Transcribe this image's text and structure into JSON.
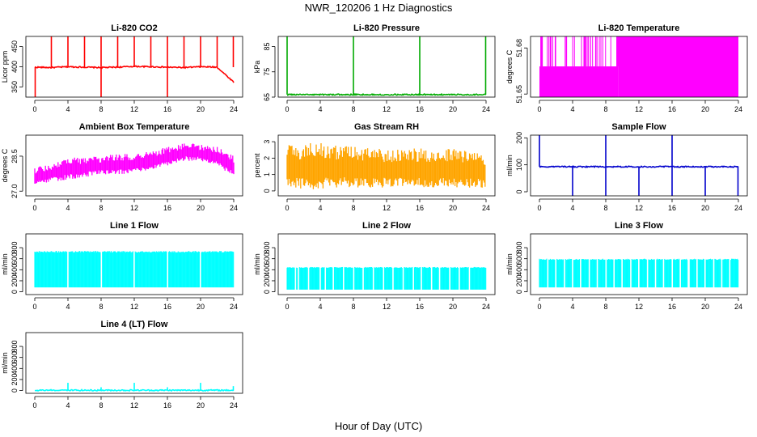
{
  "figure": {
    "title": "NWR_120206  1 Hz Diagnostics",
    "xlabel": "Hour of Day (UTC)"
  },
  "chart_data": [
    {
      "type": "line",
      "title": "Li-820 CO2",
      "ylabel": "Licor ppm",
      "color": "#ff0000",
      "xlim": [
        0,
        24
      ],
      "ylim": [
        325,
        475
      ],
      "xticks": [
        "0",
        "4",
        "8",
        "12",
        "16",
        "20",
        "24"
      ],
      "yticks": [
        "350",
        "400",
        "450"
      ],
      "x": [
        0,
        2,
        4,
        6,
        8,
        10,
        12,
        14,
        16,
        18,
        20,
        22,
        24
      ],
      "values": [
        399,
        398,
        400,
        399,
        398,
        399,
        401,
        400,
        399,
        398,
        400,
        399,
        362
      ],
      "spikes_up": [
        2,
        4,
        6,
        8,
        10,
        12,
        14,
        16,
        18,
        20,
        22,
        24
      ],
      "spikes_down": [
        0,
        8,
        16
      ]
    },
    {
      "type": "line",
      "title": "Li-820 Pressure",
      "ylabel": "kPa",
      "color": "#00aa00",
      "xlim": [
        0,
        24
      ],
      "ylim": [
        65,
        89
      ],
      "xticks": [
        "0",
        "4",
        "8",
        "12",
        "16",
        "20",
        "24"
      ],
      "yticks": [
        "65",
        "75",
        "85"
      ],
      "x": [
        0,
        4,
        8,
        12,
        16,
        20,
        24
      ],
      "values": [
        66,
        66,
        66,
        66,
        66,
        66,
        66
      ],
      "spikes_up": [
        0,
        8,
        16,
        24
      ]
    },
    {
      "type": "area",
      "title": "Li-820 Temperature",
      "ylabel": "degrees C",
      "color": "#ff00ff",
      "xlim": [
        0,
        24
      ],
      "ylim": [
        51.648,
        51.6875
      ],
      "xticks": [
        "0",
        "4",
        "8",
        "12",
        "16",
        "20",
        "24"
      ],
      "yticks": [
        "51.65",
        "51.68"
      ],
      "band_low": 51.648,
      "band_high_early": 51.668,
      "band_high_late": 51.6875,
      "transition_x": 9.5
    },
    {
      "type": "area",
      "title": "Ambient Box Temperature",
      "ylabel": "degrees C",
      "color": "#ff00ff",
      "xlim": [
        0,
        24
      ],
      "ylim": [
        26.8,
        29.4
      ],
      "xticks": [
        "0",
        "4",
        "8",
        "12",
        "16",
        "20",
        "24"
      ],
      "yticks": [
        "27.0",
        "28.5"
      ],
      "x": [
        0,
        2,
        4,
        6,
        8,
        10,
        12,
        14,
        16,
        18,
        20,
        22,
        24
      ],
      "low": [
        27.2,
        27.4,
        27.5,
        27.6,
        27.7,
        27.7,
        27.8,
        27.9,
        28.1,
        28.3,
        28.3,
        28.1,
        27.6
      ],
      "high": [
        28.0,
        28.2,
        28.4,
        28.5,
        28.5,
        28.6,
        28.6,
        28.7,
        28.9,
        29.1,
        29.0,
        28.9,
        28.5
      ]
    },
    {
      "type": "area",
      "title": "Gas Stream RH",
      "ylabel": "percent",
      "color": "#ffa500",
      "xlim": [
        0,
        24
      ],
      "ylim": [
        -0.3,
        3.4
      ],
      "xticks": [
        "0",
        "4",
        "8",
        "12",
        "16",
        "20",
        "24"
      ],
      "yticks": [
        "0",
        "1",
        "2",
        "3"
      ],
      "x": [
        0,
        2,
        4,
        6,
        8,
        10,
        12,
        14,
        16,
        18,
        20,
        22,
        24
      ],
      "low": [
        0.1,
        0.1,
        0.1,
        0.2,
        0.2,
        0.2,
        0.2,
        0.2,
        0.2,
        0.2,
        0.2,
        0.2,
        0.2
      ],
      "high": [
        2.8,
        2.9,
        3.0,
        2.8,
        2.7,
        2.6,
        2.6,
        2.6,
        2.6,
        2.5,
        2.6,
        2.5,
        2.3
      ]
    },
    {
      "type": "line",
      "title": "Sample Flow",
      "ylabel": "ml/min",
      "color": "#0000cc",
      "xlim": [
        0,
        24
      ],
      "ylim": [
        -15,
        210
      ],
      "xticks": [
        "0",
        "4",
        "8",
        "12",
        "16",
        "20",
        "24"
      ],
      "yticks": [
        "0",
        "100",
        "200"
      ],
      "x": [
        0,
        4,
        8,
        12,
        16,
        20,
        24
      ],
      "values": [
        93,
        93,
        93,
        93,
        93,
        93,
        93
      ],
      "spikes_up": [
        0,
        8,
        16
      ],
      "spikes_down": [
        4,
        8,
        12,
        16,
        20,
        24
      ]
    },
    {
      "type": "area",
      "title": "Line 1 Flow",
      "ylabel": "ml/min",
      "color": "#00ffff",
      "xlim": [
        0,
        24
      ],
      "ylim": [
        -50,
        1050
      ],
      "xticks": [
        "0",
        "4",
        "8",
        "12",
        "16",
        "20",
        "24"
      ],
      "yticks": [
        "0",
        "200",
        "400",
        "600",
        "800"
      ],
      "low": 80,
      "high": 740,
      "gaps": [
        4,
        8,
        12,
        16,
        20
      ]
    },
    {
      "type": "area",
      "title": "Line 2 Flow",
      "ylabel": "ml/min",
      "color": "#00ffff",
      "xlim": [
        0,
        24
      ],
      "ylim": [
        -50,
        1050
      ],
      "xticks": [
        "0",
        "4",
        "8",
        "12",
        "16",
        "20",
        "24"
      ],
      "yticks": [
        "0",
        "200",
        "400",
        "600",
        "800"
      ],
      "low": 40,
      "high": 450,
      "gaps": [
        1,
        1.4,
        2.6,
        4,
        4.6,
        5.6,
        6.8,
        8,
        9.2,
        10.4,
        11.6,
        12.8,
        14,
        15.2,
        16.2,
        17.4,
        18.4,
        19.6,
        20.8,
        22
      ]
    },
    {
      "type": "area",
      "title": "Line 3 Flow",
      "ylabel": "ml/min",
      "color": "#00ffff",
      "xlim": [
        0,
        24
      ],
      "ylim": [
        -50,
        1050
      ],
      "xticks": [
        "0",
        "4",
        "8",
        "12",
        "16",
        "20",
        "24"
      ],
      "yticks": [
        "0",
        "200",
        "400",
        "600",
        "800"
      ],
      "low": 80,
      "high": 600,
      "gaps": [
        1,
        2,
        3,
        4,
        5,
        6,
        7,
        8,
        9,
        10,
        11,
        12,
        13,
        14,
        15,
        16,
        17,
        18,
        19,
        20,
        21,
        22,
        23
      ]
    },
    {
      "type": "line",
      "title": "Line 4 (LT) Flow",
      "ylabel": "ml/min",
      "color": "#00ffff",
      "xlim": [
        0,
        24
      ],
      "ylim": [
        -50,
        1050
      ],
      "xticks": [
        "0",
        "4",
        "8",
        "12",
        "16",
        "20",
        "24"
      ],
      "yticks": [
        "0",
        "200",
        "400",
        "600",
        "800"
      ],
      "x": [
        0,
        24
      ],
      "values": [
        5,
        5
      ],
      "spikes_up": [
        4,
        8,
        12,
        16,
        20,
        24
      ],
      "spike_heights": [
        140,
        60,
        140,
        60,
        140,
        80
      ]
    }
  ]
}
